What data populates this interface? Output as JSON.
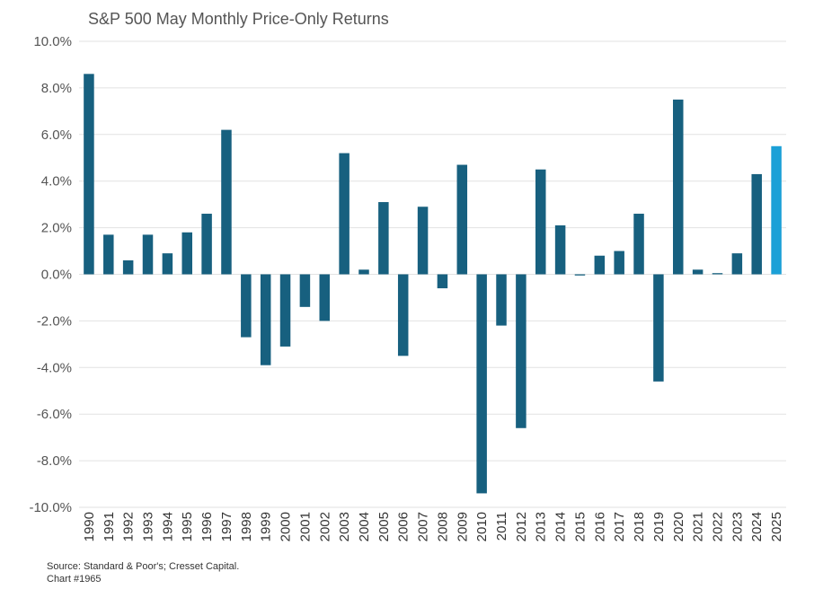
{
  "chart_data": {
    "type": "bar",
    "title": "S&P 500 May Monthly Price-Only Returns",
    "categories": [
      "1990",
      "1991",
      "1992",
      "1993",
      "1994",
      "1995",
      "1996",
      "1997",
      "1998",
      "1999",
      "2000",
      "2001",
      "2002",
      "2003",
      "2004",
      "2005",
      "2006",
      "2007",
      "2008",
      "2009",
      "2010",
      "2011",
      "2012",
      "2013",
      "2014",
      "2015",
      "2016",
      "2017",
      "2018",
      "2019",
      "2020",
      "2021",
      "2022",
      "2023",
      "2024",
      "2025"
    ],
    "values": [
      8.6,
      1.7,
      0.6,
      1.7,
      0.9,
      1.8,
      2.6,
      6.2,
      -2.7,
      -3.9,
      -3.1,
      -1.4,
      -2.0,
      5.2,
      0.2,
      3.1,
      -3.5,
      2.9,
      -0.6,
      4.7,
      -9.4,
      -2.2,
      -6.6,
      4.5,
      2.1,
      -0.05,
      0.8,
      1.0,
      2.6,
      -4.6,
      7.5,
      0.2,
      0.05,
      0.9,
      4.3,
      5.5
    ],
    "ylim": [
      -10,
      10
    ],
    "yticks": [
      10,
      8,
      6,
      4,
      2,
      0,
      -2,
      -4,
      -6,
      -8,
      -10
    ],
    "ytick_labels": [
      "10.0%",
      "8.0%",
      "6.0%",
      "4.0%",
      "2.0%",
      "0.0%",
      "-2.0%",
      "-4.0%",
      "-6.0%",
      "-8.0%",
      "-10.0%"
    ],
    "xlabel": "",
    "ylabel": "",
    "grid": true,
    "colors": {
      "bar": "#17607f",
      "highlight": "#1ba0d7",
      "grid": "#e2e2e2"
    },
    "highlight_category": "2025"
  },
  "source": {
    "line1": "Source: Standard & Poor's; Cresset Capital.",
    "line2": "Chart #1965"
  }
}
